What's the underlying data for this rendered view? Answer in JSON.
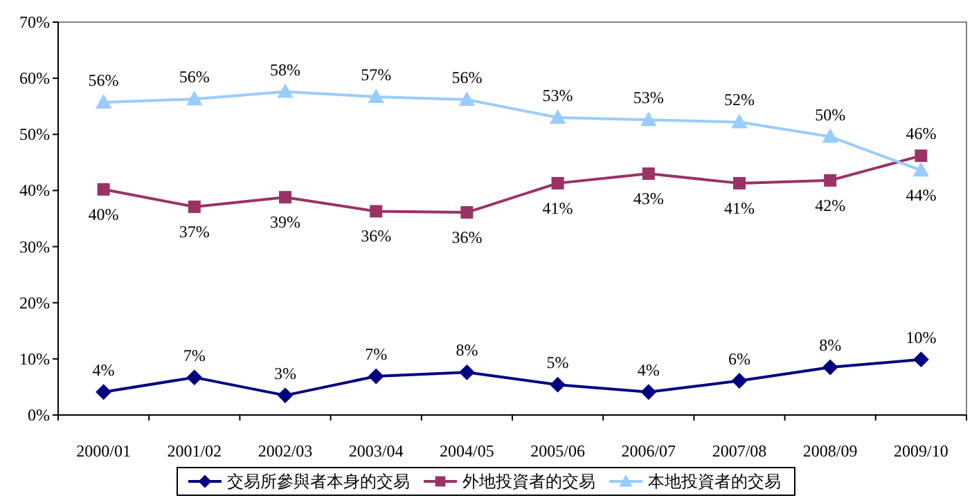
{
  "chart_data": {
    "type": "line",
    "categories": [
      "2000/01",
      "2001/02",
      "2002/03",
      "2003/04",
      "2004/05",
      "2005/06",
      "2006/07",
      "2007/08",
      "2008/09",
      "2009/10"
    ],
    "ylim": [
      0,
      70
    ],
    "yticks": [
      {
        "value": 0,
        "label": "0%"
      },
      {
        "value": 10,
        "label": "10%"
      },
      {
        "value": 20,
        "label": "20%"
      },
      {
        "value": 30,
        "label": "30%"
      },
      {
        "value": 40,
        "label": "40%"
      },
      {
        "value": 50,
        "label": "50%"
      },
      {
        "value": 60,
        "label": "60%"
      },
      {
        "value": 70,
        "label": "70%"
      }
    ],
    "grid": false,
    "legend": "bottom",
    "series": [
      {
        "name": "交易所參與者本身的交易",
        "color": "#000080",
        "marker": "diamond",
        "values": [
          4.1,
          6.7,
          3.5,
          6.9,
          7.6,
          5.4,
          4.1,
          6.1,
          8.5,
          9.9
        ],
        "value_labels": [
          "4%",
          "7%",
          "3%",
          "7%",
          "8%",
          "5%",
          "4%",
          "6%",
          "8%",
          "10%"
        ]
      },
      {
        "name": "外地投資者的交易",
        "color": "#993366",
        "marker": "square",
        "values": [
          40.2,
          37.1,
          38.8,
          36.3,
          36.1,
          41.3,
          43.0,
          41.3,
          41.8,
          46.2
        ],
        "value_labels": [
          "40%",
          "37%",
          "39%",
          "36%",
          "36%",
          "41%",
          "43%",
          "41%",
          "42%",
          "46%"
        ]
      },
      {
        "name": "本地投資者的交易",
        "color": "#99ccff",
        "marker": "triangle",
        "values": [
          55.7,
          56.3,
          57.6,
          56.7,
          56.2,
          53.0,
          52.6,
          52.2,
          49.6,
          43.6
        ],
        "value_labels": [
          "56%",
          "56%",
          "58%",
          "57%",
          "56%",
          "53%",
          "53%",
          "52%",
          "50%",
          "44%"
        ]
      }
    ]
  }
}
